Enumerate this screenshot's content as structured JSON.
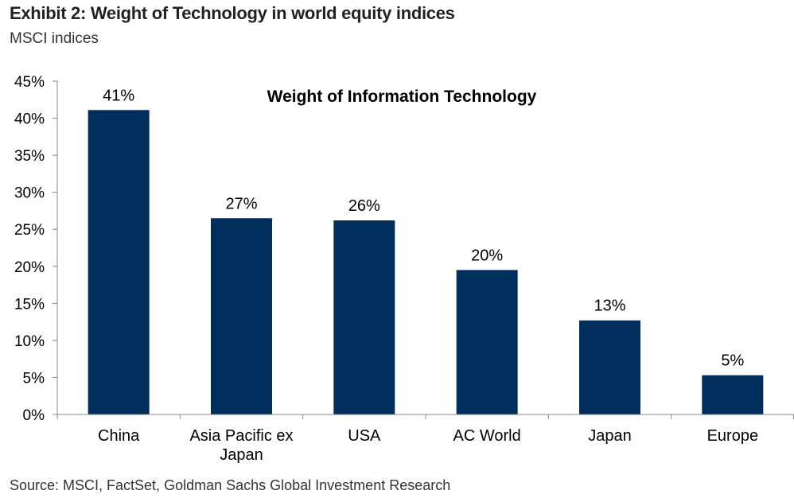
{
  "exhibit": {
    "title": "Exhibit 2: Weight of Technology in world equity indices",
    "subtitle": "MSCI indices",
    "source": "Source: MSCI, FactSet, Goldman Sachs Global Investment Research"
  },
  "chart_data": {
    "type": "bar",
    "title": "Weight of Information  Technology",
    "xlabel": "",
    "ylabel": "",
    "categories": [
      "China",
      "Asia Pacific ex Japan",
      "USA",
      "AC World",
      "Japan",
      "Europe"
    ],
    "category_lines": [
      [
        "China"
      ],
      [
        "Asia Pacific ex",
        "Japan"
      ],
      [
        "USA"
      ],
      [
        "AC World"
      ],
      [
        "Japan"
      ],
      [
        "Europe"
      ]
    ],
    "values": [
      41,
      27,
      26,
      20,
      13,
      5
    ],
    "bar_values": [
      41.1,
      26.5,
      26.2,
      19.5,
      12.7,
      5.3
    ],
    "data_labels": [
      "41%",
      "27%",
      "26%",
      "20%",
      "13%",
      "5%"
    ],
    "ylim": [
      0,
      45
    ],
    "yticks": [
      0,
      5,
      10,
      15,
      20,
      25,
      30,
      35,
      40,
      45
    ],
    "ytick_labels": [
      "0%",
      "5%",
      "10%",
      "15%",
      "20%",
      "25%",
      "30%",
      "35%",
      "40%",
      "45%"
    ],
    "grid": false,
    "legend": "none",
    "bar_color": "#002F5D",
    "axis_color": "#888888"
  }
}
